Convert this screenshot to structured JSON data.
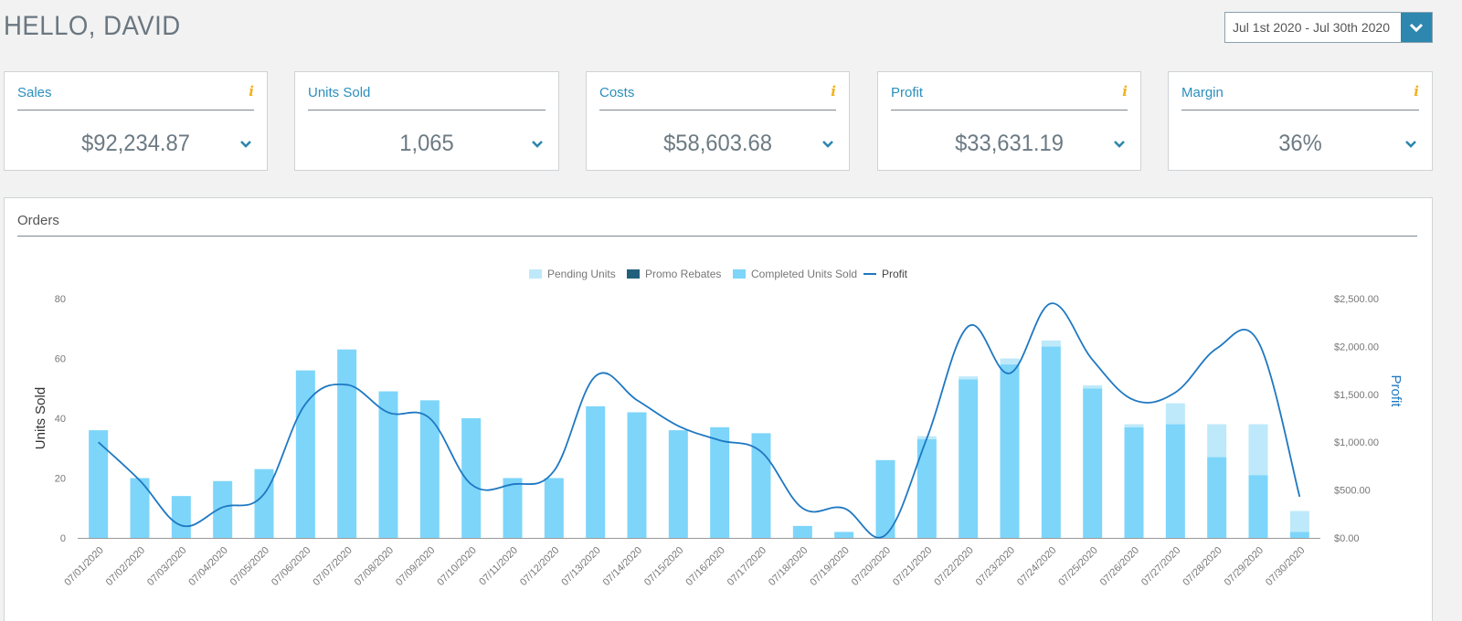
{
  "greeting": "HELLO, DAVID",
  "date_range": {
    "label": "Jul 1st 2020 - Jul 30th 2020"
  },
  "kpis": [
    {
      "title": "Sales",
      "value": "$92,234.87",
      "info": "i"
    },
    {
      "title": "Units Sold",
      "value": "1,065"
    },
    {
      "title": "Costs",
      "value": "$58,603.68",
      "info": "i"
    },
    {
      "title": "Profit",
      "value": "$33,631.19",
      "info": "i"
    },
    {
      "title": "Margin",
      "value": "36%",
      "info": "i"
    }
  ],
  "orders": {
    "title": "Orders"
  },
  "colors": {
    "accent": "#2d87ae",
    "kpi_title": "#2b8fbd",
    "info": "#f2b21b",
    "pending": "#bde9fa",
    "promo": "#235f7d",
    "completed": "#7dd5fa",
    "profit": "#1e78c2"
  },
  "icons": {
    "date_toggle": "chevron-down-icon",
    "kpi_expand": "chevron-down-icon",
    "info": "info-icon"
  },
  "chart_data": {
    "type": "bar",
    "categories": [
      "07/01/2020",
      "07/02/2020",
      "07/03/2020",
      "07/04/2020",
      "07/05/2020",
      "07/06/2020",
      "07/07/2020",
      "07/08/2020",
      "07/09/2020",
      "07/10/2020",
      "07/11/2020",
      "07/12/2020",
      "07/13/2020",
      "07/14/2020",
      "07/15/2020",
      "07/16/2020",
      "07/17/2020",
      "07/18/2020",
      "07/19/2020",
      "07/20/2020",
      "07/21/2020",
      "07/22/2020",
      "07/23/2020",
      "07/24/2020",
      "07/25/2020",
      "07/26/2020",
      "07/27/2020",
      "07/28/2020",
      "07/29/2020",
      "07/30/2020"
    ],
    "series": [
      {
        "name": "Pending Units",
        "type": "bar",
        "stack": "units",
        "values": [
          0,
          0,
          0,
          0,
          0,
          0,
          0,
          0,
          0,
          0,
          0,
          0,
          0,
          0,
          0,
          0,
          0,
          0,
          0,
          0,
          1,
          1,
          2,
          2,
          1,
          1,
          7,
          11,
          17,
          7
        ]
      },
      {
        "name": "Promo Rebates",
        "type": "bar",
        "stack": "units",
        "values": [
          0,
          0,
          0,
          0,
          0,
          0,
          0,
          0,
          0,
          0,
          0,
          0,
          0,
          0,
          0,
          0,
          0,
          0,
          0,
          0,
          0,
          0,
          0,
          0,
          0,
          0,
          0,
          0,
          0,
          0
        ]
      },
      {
        "name": "Completed Units Sold",
        "type": "bar",
        "stack": "units",
        "values": [
          36,
          20,
          14,
          19,
          23,
          56,
          63,
          49,
          46,
          40,
          20,
          20,
          44,
          42,
          36,
          37,
          35,
          4,
          2,
          26,
          33,
          53,
          58,
          64,
          50,
          37,
          38,
          27,
          21,
          2
        ]
      },
      {
        "name": "Profit",
        "type": "line",
        "axis": "right",
        "values": [
          1000,
          600,
          130,
          320,
          460,
          1400,
          1600,
          1310,
          1250,
          560,
          560,
          700,
          1690,
          1440,
          1170,
          1020,
          900,
          310,
          310,
          30,
          1040,
          2210,
          1720,
          2450,
          1860,
          1440,
          1520,
          1980,
          2050,
          430
        ]
      }
    ],
    "ylabel": "Units Sold",
    "y2label": "Profit",
    "ylim": [
      0,
      80
    ],
    "y2lim": [
      0,
      2500
    ],
    "yticks": [
      "0",
      "20",
      "40",
      "60",
      "80"
    ],
    "y2ticks": [
      "$0.00",
      "$500.00",
      "$1,000.00",
      "$1,500.00",
      "$2,000.00",
      "$2,500.00"
    ],
    "legend_position": "top",
    "grid": false
  }
}
